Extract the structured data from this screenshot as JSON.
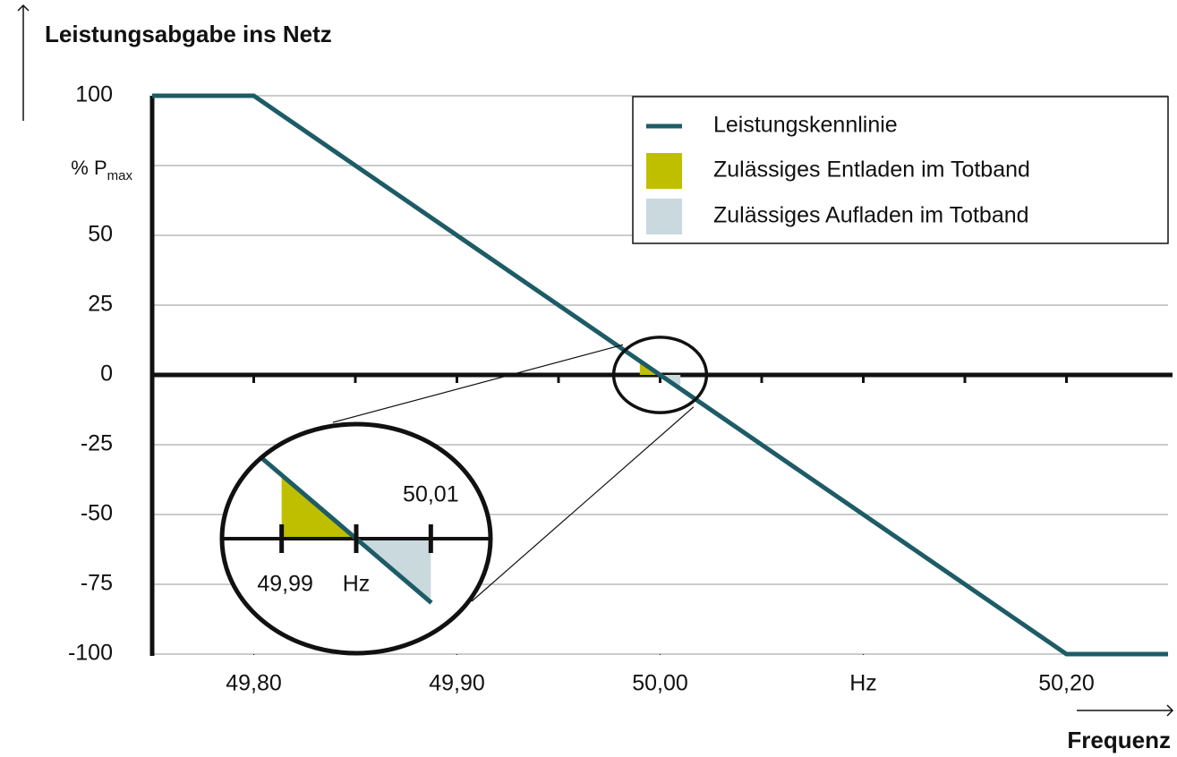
{
  "chart_data": {
    "type": "line",
    "title": "Leistungsabgabe ins Netz",
    "x_label": "Frequenz",
    "x": [
      49.75,
      49.8,
      50.2,
      50.25
    ],
    "series": [
      {
        "name": "Leistungskennlinie",
        "color": "#1d5c66",
        "values": [
          100,
          100,
          -100,
          -100
        ]
      }
    ],
    "areas": [
      {
        "name": "Zulässiges Entladen im Totband",
        "color": "#bfbf00",
        "x": [
          49.99,
          50.0
        ]
      },
      {
        "name": "Zulässiges Aufladen im Totband",
        "color": "#c9d9dd",
        "x": [
          50.0,
          50.01
        ]
      }
    ],
    "xlim": [
      49.75,
      50.25
    ],
    "xticks": [
      {
        "value": 49.8,
        "label": "49,80"
      },
      {
        "value": 49.9,
        "label": "49,90"
      },
      {
        "value": 50.0,
        "label": "50,00"
      },
      {
        "value": 50.1,
        "label": "Hz"
      },
      {
        "value": 50.2,
        "label": "50,20"
      }
    ],
    "xminorticks": [
      49.8,
      49.85,
      49.9,
      49.95,
      50.0,
      50.05,
      50.1,
      50.15,
      50.2
    ],
    "ylim": [
      -100,
      100
    ],
    "yticks": [
      -100,
      -75,
      -50,
      -25,
      0,
      25,
      50,
      {
        "value": 75,
        "label": "% P",
        "label_sub": "max"
      },
      100
    ],
    "grid": true,
    "inset": {
      "xlim": [
        49.982,
        50.018
      ],
      "ylim": [
        -9,
        9
      ],
      "xticks": [
        {
          "value": 49.99,
          "label": "49,99"
        },
        {
          "value": 50.0,
          "label": "Hz"
        },
        {
          "value": 50.01,
          "label": "50,01"
        }
      ]
    }
  }
}
